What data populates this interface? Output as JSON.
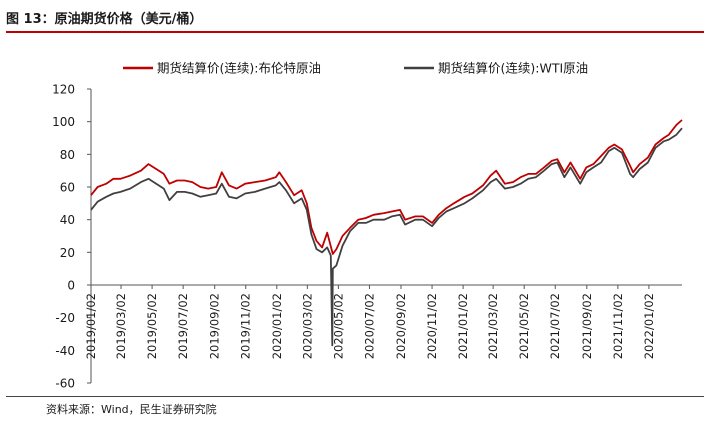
{
  "figure": {
    "title": "图 13：原油期货价格（美元/桶）",
    "source": "资料来源：Wind，民生证券研究院"
  },
  "chart_data": {
    "type": "line",
    "title": "",
    "xlabel": "",
    "ylabel": "",
    "ylim": [
      -60,
      120
    ],
    "yticks": [
      -60,
      -40,
      -20,
      0,
      20,
      40,
      60,
      80,
      100,
      120
    ],
    "xlim": [
      "2019-01-02",
      "2022-03-08"
    ],
    "xticks": [
      "2019/01/02",
      "2019/03/02",
      "2019/05/02",
      "2019/07/02",
      "2019/09/02",
      "2019/11/02",
      "2020/01/02",
      "2020/03/02",
      "2020/05/02",
      "2020/07/02",
      "2020/09/02",
      "2020/11/02",
      "2021/01/02",
      "2021/03/02",
      "2021/05/02",
      "2021/07/02",
      "2021/09/02",
      "2021/11/02",
      "2022/01/02"
    ],
    "grid": false,
    "legend_position": "top",
    "series": [
      {
        "name": "期货结算价(连续):布伦特原油",
        "color": "#c00000",
        "points": [
          [
            "2019-01-02",
            55
          ],
          [
            "2019-01-15",
            60
          ],
          [
            "2019-02-01",
            62
          ],
          [
            "2019-02-15",
            65
          ],
          [
            "2019-03-01",
            65
          ],
          [
            "2019-03-20",
            67
          ],
          [
            "2019-04-10",
            70
          ],
          [
            "2019-04-25",
            74
          ],
          [
            "2019-05-10",
            71
          ],
          [
            "2019-05-25",
            68
          ],
          [
            "2019-06-05",
            62
          ],
          [
            "2019-06-20",
            64
          ],
          [
            "2019-07-05",
            64
          ],
          [
            "2019-07-20",
            63
          ],
          [
            "2019-08-05",
            60
          ],
          [
            "2019-08-20",
            59
          ],
          [
            "2019-09-05",
            60
          ],
          [
            "2019-09-16",
            69
          ],
          [
            "2019-09-30",
            61
          ],
          [
            "2019-10-15",
            59
          ],
          [
            "2019-11-01",
            62
          ],
          [
            "2019-11-20",
            63
          ],
          [
            "2019-12-10",
            64
          ],
          [
            "2019-12-31",
            66
          ],
          [
            "2020-01-07",
            69
          ],
          [
            "2020-01-20",
            63
          ],
          [
            "2020-02-05",
            55
          ],
          [
            "2020-02-20",
            58
          ],
          [
            "2020-03-01",
            50
          ],
          [
            "2020-03-10",
            35
          ],
          [
            "2020-03-20",
            27
          ],
          [
            "2020-03-31",
            23
          ],
          [
            "2020-04-10",
            32
          ],
          [
            "2020-04-21",
            19
          ],
          [
            "2020-04-28",
            22
          ],
          [
            "2020-05-10",
            30
          ],
          [
            "2020-05-25",
            35
          ],
          [
            "2020-06-10",
            40
          ],
          [
            "2020-06-25",
            41
          ],
          [
            "2020-07-10",
            43
          ],
          [
            "2020-07-31",
            44
          ],
          [
            "2020-08-15",
            45
          ],
          [
            "2020-08-31",
            46
          ],
          [
            "2020-09-10",
            40
          ],
          [
            "2020-09-30",
            42
          ],
          [
            "2020-10-15",
            42
          ],
          [
            "2020-11-02",
            38
          ],
          [
            "2020-11-15",
            43
          ],
          [
            "2020-11-30",
            47
          ],
          [
            "2020-12-15",
            50
          ],
          [
            "2021-01-05",
            54
          ],
          [
            "2021-01-20",
            56
          ],
          [
            "2021-02-10",
            61
          ],
          [
            "2021-02-25",
            67
          ],
          [
            "2021-03-08",
            70
          ],
          [
            "2021-03-25",
            62
          ],
          [
            "2021-04-10",
            63
          ],
          [
            "2021-04-25",
            66
          ],
          [
            "2021-05-10",
            68
          ],
          [
            "2021-05-25",
            68
          ],
          [
            "2021-06-10",
            72
          ],
          [
            "2021-06-25",
            76
          ],
          [
            "2021-07-06",
            77
          ],
          [
            "2021-07-20",
            69
          ],
          [
            "2021-08-01",
            75
          ],
          [
            "2021-08-20",
            65
          ],
          [
            "2021-09-01",
            72
          ],
          [
            "2021-09-15",
            74
          ],
          [
            "2021-09-30",
            79
          ],
          [
            "2021-10-15",
            84
          ],
          [
            "2021-10-26",
            86
          ],
          [
            "2021-11-10",
            83
          ],
          [
            "2021-11-26",
            73
          ],
          [
            "2021-12-02",
            69
          ],
          [
            "2021-12-15",
            74
          ],
          [
            "2021-12-31",
            78
          ],
          [
            "2022-01-15",
            86
          ],
          [
            "2022-01-31",
            90
          ],
          [
            "2022-02-10",
            92
          ],
          [
            "2022-02-25",
            98
          ],
          [
            "2022-03-08",
            101
          ]
        ]
      },
      {
        "name": "期货结算价(连续):WTI原油",
        "color": "#404040",
        "points": [
          [
            "2019-01-02",
            46
          ],
          [
            "2019-01-15",
            51
          ],
          [
            "2019-02-01",
            54
          ],
          [
            "2019-02-15",
            56
          ],
          [
            "2019-03-01",
            57
          ],
          [
            "2019-03-20",
            59
          ],
          [
            "2019-04-10",
            63
          ],
          [
            "2019-04-25",
            65
          ],
          [
            "2019-05-10",
            62
          ],
          [
            "2019-05-25",
            59
          ],
          [
            "2019-06-05",
            52
          ],
          [
            "2019-06-20",
            57
          ],
          [
            "2019-07-05",
            57
          ],
          [
            "2019-07-20",
            56
          ],
          [
            "2019-08-05",
            54
          ],
          [
            "2019-08-20",
            55
          ],
          [
            "2019-09-05",
            56
          ],
          [
            "2019-09-16",
            62
          ],
          [
            "2019-09-30",
            54
          ],
          [
            "2019-10-15",
            53
          ],
          [
            "2019-11-01",
            56
          ],
          [
            "2019-11-20",
            57
          ],
          [
            "2019-12-10",
            59
          ],
          [
            "2019-12-31",
            61
          ],
          [
            "2020-01-07",
            63
          ],
          [
            "2020-01-20",
            58
          ],
          [
            "2020-02-05",
            50
          ],
          [
            "2020-02-20",
            53
          ],
          [
            "2020-03-01",
            46
          ],
          [
            "2020-03-10",
            31
          ],
          [
            "2020-03-20",
            22
          ],
          [
            "2020-03-31",
            20
          ],
          [
            "2020-04-10",
            23
          ],
          [
            "2020-04-17",
            18
          ],
          [
            "2020-04-20",
            -37
          ],
          [
            "2020-04-21",
            10
          ],
          [
            "2020-04-28",
            12
          ],
          [
            "2020-05-10",
            24
          ],
          [
            "2020-05-25",
            33
          ],
          [
            "2020-06-10",
            38
          ],
          [
            "2020-06-25",
            38
          ],
          [
            "2020-07-10",
            40
          ],
          [
            "2020-07-31",
            40
          ],
          [
            "2020-08-15",
            42
          ],
          [
            "2020-08-31",
            43
          ],
          [
            "2020-09-10",
            37
          ],
          [
            "2020-09-30",
            40
          ],
          [
            "2020-10-15",
            40
          ],
          [
            "2020-11-02",
            36
          ],
          [
            "2020-11-15",
            41
          ],
          [
            "2020-11-30",
            45
          ],
          [
            "2020-12-15",
            47
          ],
          [
            "2021-01-05",
            50
          ],
          [
            "2021-01-20",
            53
          ],
          [
            "2021-02-10",
            58
          ],
          [
            "2021-02-25",
            63
          ],
          [
            "2021-03-08",
            65
          ],
          [
            "2021-03-25",
            59
          ],
          [
            "2021-04-10",
            60
          ],
          [
            "2021-04-25",
            62
          ],
          [
            "2021-05-10",
            65
          ],
          [
            "2021-05-25",
            66
          ],
          [
            "2021-06-10",
            70
          ],
          [
            "2021-06-25",
            74
          ],
          [
            "2021-07-06",
            75
          ],
          [
            "2021-07-20",
            66
          ],
          [
            "2021-08-01",
            72
          ],
          [
            "2021-08-20",
            62
          ],
          [
            "2021-09-01",
            69
          ],
          [
            "2021-09-15",
            72
          ],
          [
            "2021-09-30",
            75
          ],
          [
            "2021-10-15",
            82
          ],
          [
            "2021-10-26",
            84
          ],
          [
            "2021-11-10",
            81
          ],
          [
            "2021-11-26",
            68
          ],
          [
            "2021-12-02",
            66
          ],
          [
            "2021-12-15",
            71
          ],
          [
            "2021-12-31",
            75
          ],
          [
            "2022-01-15",
            84
          ],
          [
            "2022-01-31",
            88
          ],
          [
            "2022-02-10",
            89
          ],
          [
            "2022-02-25",
            92
          ],
          [
            "2022-03-08",
            96
          ]
        ]
      }
    ]
  }
}
